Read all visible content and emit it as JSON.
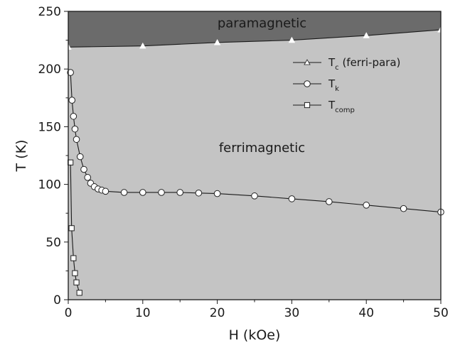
{
  "chart_data": {
    "type": "line",
    "xlabel": "H (kOe)",
    "ylabel": "T (K)",
    "xlim": [
      0,
      50
    ],
    "ylim": [
      0,
      250
    ],
    "xticks": [
      0,
      10,
      20,
      30,
      40,
      50
    ],
    "yticks": [
      0,
      50,
      100,
      150,
      200,
      250
    ],
    "grid": false,
    "legend_position": "top-right",
    "regions": [
      {
        "name": "paramagnetic",
        "label_at": [
          26,
          236
        ],
        "color": "#6b6b6b"
      },
      {
        "name": "ferrimagnetic",
        "label_at": [
          26,
          128
        ],
        "color": "#c4c4c4"
      }
    ],
    "series": [
      {
        "legend_main": "T",
        "legend_sub": "c",
        "legend_rest": " (ferri-para)",
        "marker": "triangle",
        "x": [
          0,
          10,
          20,
          30,
          40,
          50
        ],
        "y": [
          219,
          220,
          223,
          225,
          229,
          234
        ]
      },
      {
        "legend_main": "T",
        "legend_sub": "k",
        "legend_rest": "",
        "marker": "circle",
        "x": [
          0.3,
          0.5,
          0.7,
          0.9,
          1.1,
          1.6,
          2.1,
          2.6,
          3.0,
          3.5,
          4.0,
          4.5,
          5.0,
          7.5,
          10,
          12.5,
          15,
          17.5,
          20,
          25,
          30,
          35,
          40,
          45,
          50
        ],
        "y": [
          197,
          173,
          159,
          148,
          139,
          124,
          113,
          106,
          101,
          98,
          96,
          95,
          94,
          93,
          93,
          93,
          93,
          92.5,
          92,
          90,
          87.5,
          85,
          82,
          79,
          76
        ]
      },
      {
        "legend_main": "T",
        "legend_sub": "comp",
        "legend_rest": "",
        "marker": "square",
        "x": [
          0.3,
          0.45,
          0.7,
          0.9,
          1.1,
          1.5
        ],
        "y": [
          119,
          62,
          36,
          23,
          15,
          6
        ]
      }
    ]
  }
}
